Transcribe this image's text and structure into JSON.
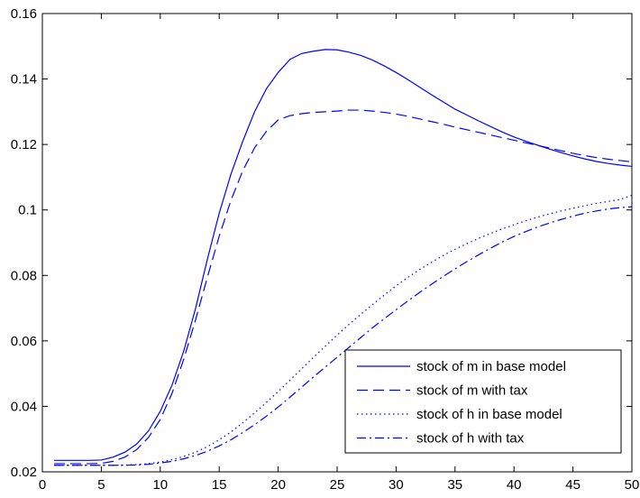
{
  "chart_data": {
    "type": "line",
    "title": "",
    "xlabel": "",
    "ylabel": "",
    "xlim": [
      0,
      50
    ],
    "ylim": [
      0.02,
      0.16
    ],
    "x_ticks": [
      0,
      5,
      10,
      15,
      20,
      25,
      30,
      35,
      40,
      45,
      50
    ],
    "y_ticks": [
      0.02,
      0.04,
      0.06,
      0.08,
      0.1,
      0.12,
      0.14,
      0.16
    ],
    "x_tick_labels": [
      "0",
      "5",
      "10",
      "15",
      "20",
      "25",
      "30",
      "35",
      "40",
      "45",
      "50"
    ],
    "y_tick_labels": [
      "0.02",
      "0.04",
      "0.06",
      "0.08",
      "0.1",
      "0.12",
      "0.14",
      "0.16"
    ],
    "grid": false,
    "legend_position": "bottom-right",
    "line_color": "#0000ff",
    "x": [
      1,
      2,
      3,
      4,
      5,
      6,
      7,
      8,
      9,
      10,
      11,
      12,
      13,
      14,
      15,
      16,
      17,
      18,
      19,
      20,
      21,
      22,
      23,
      24,
      25,
      26,
      27,
      28,
      29,
      30,
      31,
      32,
      33,
      34,
      35,
      36,
      37,
      38,
      39,
      40,
      41,
      42,
      43,
      44,
      45,
      46,
      47,
      48,
      49,
      50
    ],
    "series": [
      {
        "name": "stock of m in base model",
        "dash": "solid",
        "values": [
          0.0235,
          0.0235,
          0.0235,
          0.0235,
          0.0236,
          0.0245,
          0.026,
          0.0285,
          0.0325,
          0.0385,
          0.0465,
          0.057,
          0.07,
          0.085,
          0.099,
          0.111,
          0.121,
          0.13,
          0.137,
          0.142,
          0.146,
          0.1478,
          0.1485,
          0.149,
          0.1489,
          0.1482,
          0.1472,
          0.1458,
          0.144,
          0.142,
          0.1398,
          0.1375,
          0.1352,
          0.133,
          0.1308,
          0.129,
          0.1272,
          0.1255,
          0.1238,
          0.1223,
          0.121,
          0.1198,
          0.1186,
          0.1175,
          0.1165,
          0.1156,
          0.1148,
          0.1142,
          0.1137,
          0.1133
        ]
      },
      {
        "name": "stock of m with tax",
        "dash": "dashed",
        "values": [
          0.0225,
          0.0225,
          0.0225,
          0.0225,
          0.0226,
          0.0232,
          0.0245,
          0.0268,
          0.0305,
          0.036,
          0.044,
          0.0545,
          0.0665,
          0.0795,
          0.092,
          0.103,
          0.112,
          0.119,
          0.124,
          0.1275,
          0.1288,
          0.1294,
          0.1298,
          0.13,
          0.1302,
          0.1305,
          0.1305,
          0.1302,
          0.1298,
          0.1293,
          0.1286,
          0.1278,
          0.127,
          0.1262,
          0.1253,
          0.1245,
          0.1237,
          0.1229,
          0.1221,
          0.1213,
          0.1205,
          0.1197,
          0.1189,
          0.1181,
          0.1173,
          0.1166,
          0.116,
          0.1155,
          0.1151,
          0.1147
        ]
      },
      {
        "name": "stock of h in base model",
        "dash": "dotted",
        "values": [
          0.022,
          0.022,
          0.022,
          0.022,
          0.022,
          0.022,
          0.0221,
          0.0222,
          0.0225,
          0.023,
          0.0237,
          0.0247,
          0.026,
          0.0277,
          0.0298,
          0.0322,
          0.035,
          0.038,
          0.0412,
          0.0445,
          0.048,
          0.0515,
          0.055,
          0.0584,
          0.0618,
          0.065,
          0.0681,
          0.0711,
          0.074,
          0.0768,
          0.0794,
          0.0818,
          0.084,
          0.0861,
          0.088,
          0.0897,
          0.0913,
          0.0928,
          0.0942,
          0.0955,
          0.0967,
          0.0978,
          0.0988,
          0.0997,
          0.1005,
          0.1013,
          0.102,
          0.1026,
          0.1032,
          0.1045
        ]
      },
      {
        "name": "stock of h with tax",
        "dash": "dashdot",
        "values": [
          0.022,
          0.022,
          0.022,
          0.022,
          0.022,
          0.022,
          0.022,
          0.0221,
          0.0223,
          0.0227,
          0.0232,
          0.024,
          0.025,
          0.0263,
          0.0279,
          0.0298,
          0.032,
          0.0344,
          0.037,
          0.0398,
          0.0428,
          0.0459,
          0.049,
          0.052,
          0.055,
          0.058,
          0.061,
          0.064,
          0.0668,
          0.0695,
          0.0722,
          0.0748,
          0.0773,
          0.0797,
          0.082,
          0.0842,
          0.0863,
          0.0883,
          0.0902,
          0.0919,
          0.0934,
          0.0948,
          0.096,
          0.0971,
          0.0981,
          0.099,
          0.0997,
          0.1003,
          0.1007,
          0.101
        ]
      }
    ]
  }
}
